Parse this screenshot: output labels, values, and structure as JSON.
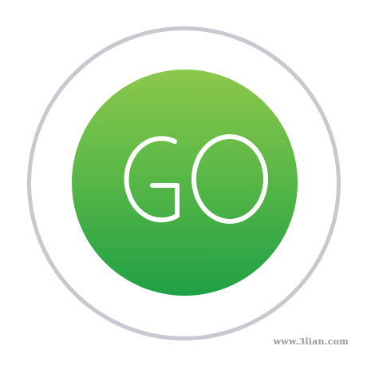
{
  "icon": {
    "label": "GO",
    "letters": [
      "G",
      "O"
    ],
    "colors": {
      "ring": "#c6c9ce",
      "gradient_top": "#8cc84b",
      "gradient_mid": "#5cb847",
      "gradient_bottom": "#1fa045",
      "text": "#ffffff"
    }
  },
  "watermark": {
    "text": "www.3lian.com"
  }
}
